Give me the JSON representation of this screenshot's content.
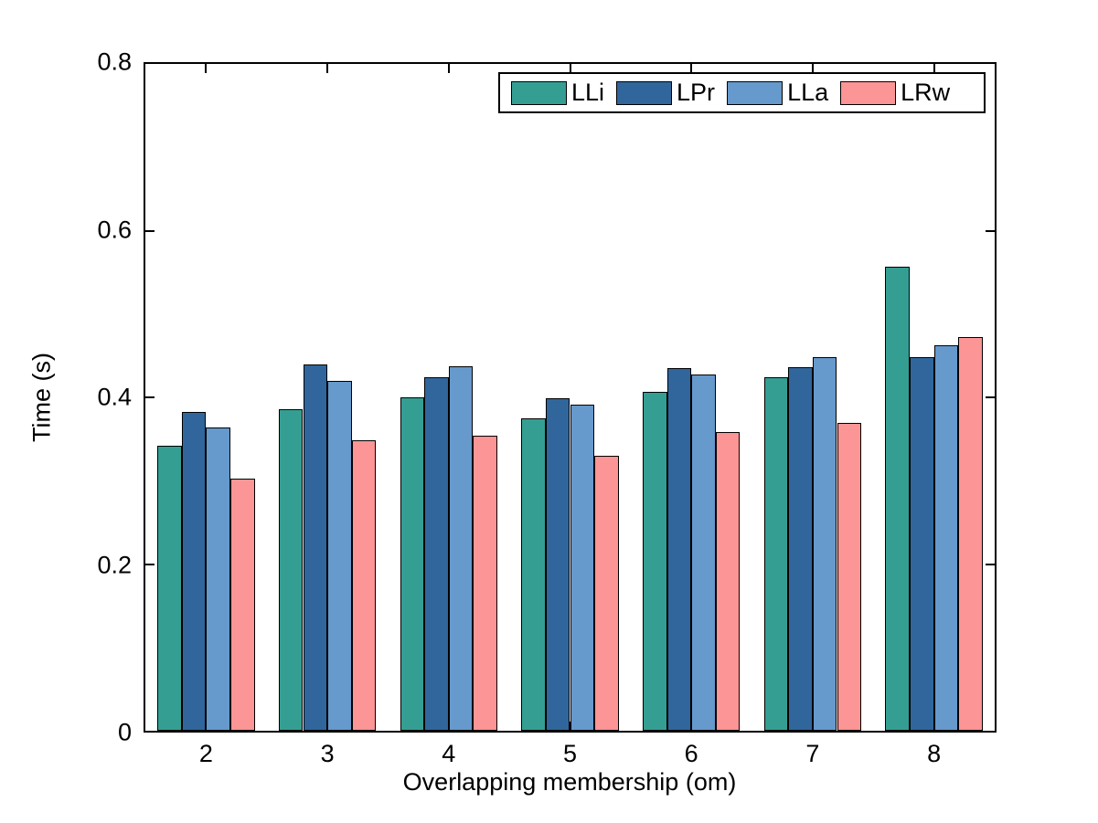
{
  "figure": {
    "background": "#ffffff",
    "axis_color": "#000000"
  },
  "chart_data": {
    "type": "bar",
    "title": "",
    "xlabel": "Overlapping membership (om)",
    "ylabel": "Time (s)",
    "categories": [
      "2",
      "3",
      "4",
      "5",
      "6",
      "7",
      "8"
    ],
    "series": [
      {
        "name": "LLi",
        "color": "#359e93",
        "values": [
          0.342,
          0.386,
          0.4,
          0.375,
          0.407,
          0.424,
          0.557
        ]
      },
      {
        "name": "LPr",
        "color": "#30669b",
        "values": [
          0.383,
          0.439,
          0.424,
          0.399,
          0.435,
          0.436,
          0.448
        ]
      },
      {
        "name": "LLa",
        "color": "#6699cc",
        "values": [
          0.364,
          0.42,
          0.437,
          0.391,
          0.428,
          0.448,
          0.462
        ]
      },
      {
        "name": "LRw",
        "color": "#fc9595",
        "values": [
          0.303,
          0.349,
          0.354,
          0.33,
          0.358,
          0.369,
          0.472
        ]
      }
    ],
    "ylim": [
      0,
      0.8
    ],
    "yticks": [
      0,
      0.2,
      0.4,
      0.6,
      0.8
    ],
    "ytick_labels": [
      "0",
      "0.2",
      "0.4",
      "0.6",
      "0.8"
    ],
    "bar_edge_color": "#000000",
    "grid": false,
    "legend_position": "top-right-inside",
    "legend_orientation": "horizontal"
  }
}
